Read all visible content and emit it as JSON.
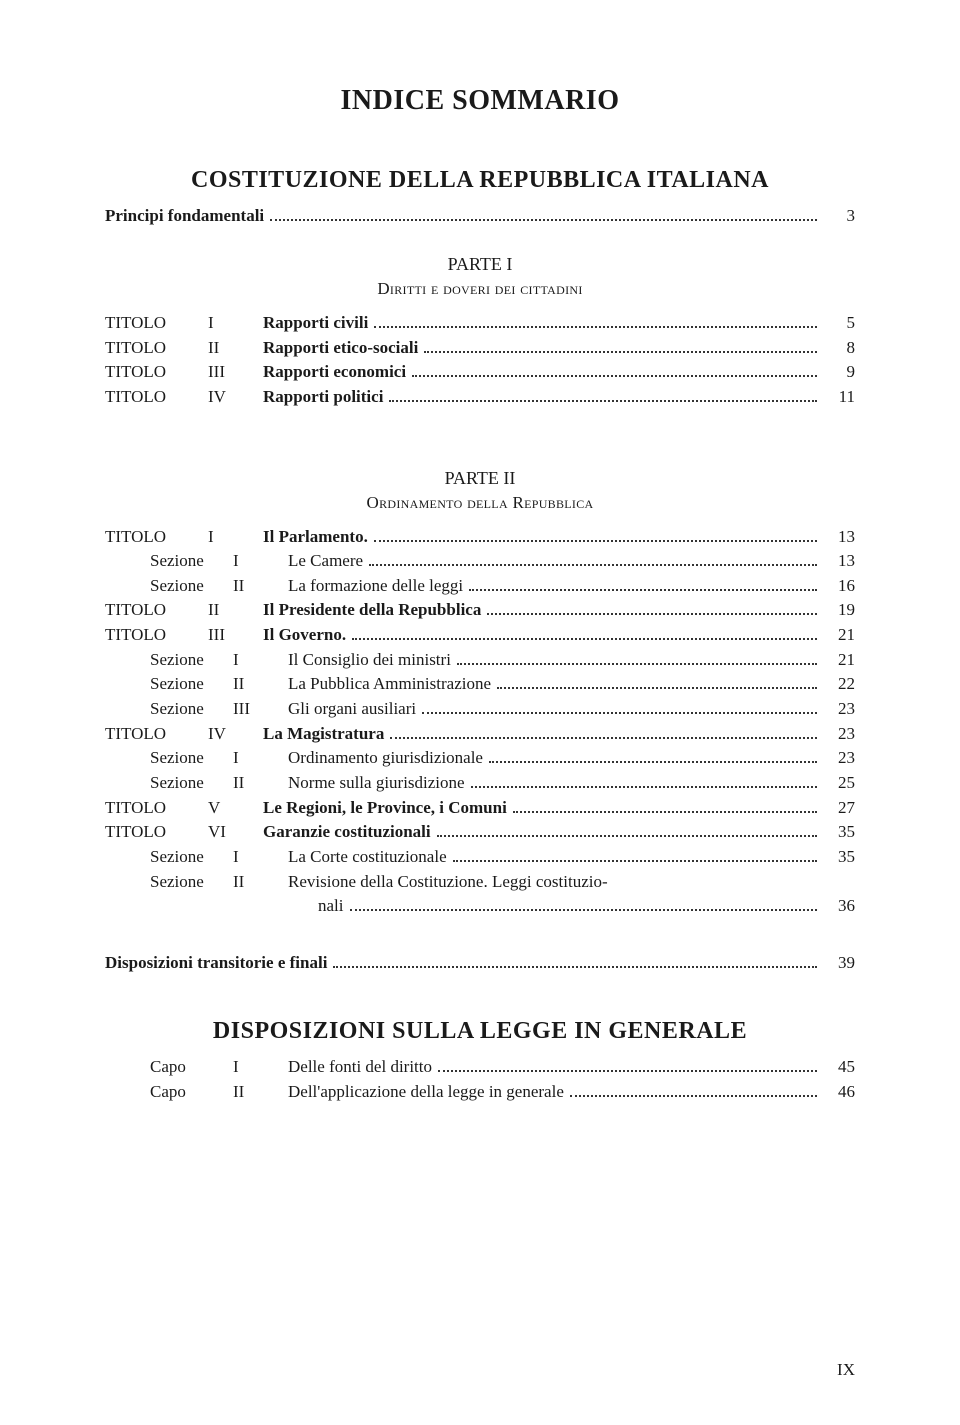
{
  "main_title": "INDICE SOMMARIO",
  "heading1": "COSTITUZIONE DELLA REPUBBLICA ITALIANA",
  "principi_line": {
    "label": "Principi fondamentali",
    "page": "3"
  },
  "parte1": {
    "label": "PARTE I",
    "subtitle": "Diritti e doveri dei cittadini",
    "rows": [
      {
        "a": "TITOLO",
        "b": "I",
        "t": "Rapporti civili",
        "bold": true,
        "p": "5"
      },
      {
        "a": "TITOLO",
        "b": "II",
        "t": "Rapporti etico-sociali",
        "bold": true,
        "p": "8"
      },
      {
        "a": "TITOLO",
        "b": "III",
        "t": "Rapporti economici",
        "bold": true,
        "p": "9"
      },
      {
        "a": "TITOLO",
        "b": "IV",
        "t": "Rapporti politici",
        "bold": true,
        "p": "11"
      }
    ]
  },
  "parte2": {
    "label": "PARTE II",
    "subtitle": "Ordinamento della Repubblica",
    "rows": [
      {
        "a": "TITOLO",
        "b": "I",
        "t": "Il Parlamento.",
        "bold": true,
        "p": "13",
        "indent": false
      },
      {
        "a": "Sezione",
        "b": "I",
        "t": "Le Camere",
        "bold": false,
        "p": "13",
        "indent": true
      },
      {
        "a": "Sezione",
        "b": "II",
        "t": "La formazione delle leggi",
        "bold": false,
        "p": "16",
        "indent": true
      },
      {
        "a": "TITOLO",
        "b": "II",
        "t": "Il Presidente della Repubblica",
        "bold": true,
        "p": "19",
        "indent": false
      },
      {
        "a": "TITOLO",
        "b": "III",
        "t": "Il Governo.",
        "bold": true,
        "p": "21",
        "indent": false
      },
      {
        "a": "Sezione",
        "b": "I",
        "t": "Il Consiglio dei ministri",
        "bold": false,
        "p": "21",
        "indent": true
      },
      {
        "a": "Sezione",
        "b": "II",
        "t": "La Pubblica Amministrazione",
        "bold": false,
        "p": "22",
        "indent": true
      },
      {
        "a": "Sezione",
        "b": "III",
        "t": "Gli organi ausiliari",
        "bold": false,
        "p": "23",
        "indent": true
      },
      {
        "a": "TITOLO",
        "b": "IV",
        "t": "La Magistratura",
        "bold": true,
        "p": "23",
        "indent": false
      },
      {
        "a": "Sezione",
        "b": "I",
        "t": "Ordinamento giurisdizionale",
        "bold": false,
        "p": "23",
        "indent": true
      },
      {
        "a": "Sezione",
        "b": "II",
        "t": "Norme sulla giurisdizione",
        "bold": false,
        "p": "25",
        "indent": true
      },
      {
        "a": "TITOLO",
        "b": "V",
        "t": "Le Regioni, le Province, i Comuni",
        "bold": true,
        "p": "27",
        "indent": false
      },
      {
        "a": "TITOLO",
        "b": "VI",
        "t": "Garanzie costituzionali",
        "bold": true,
        "p": "35",
        "indent": false
      },
      {
        "a": "Sezione",
        "b": "I",
        "t": "La Corte costituzionale",
        "bold": false,
        "p": "35",
        "indent": true
      },
      {
        "a": "Sezione",
        "b": "II",
        "t": "Revisione della Costituzione. Leggi costituzio-",
        "bold": false,
        "p": "",
        "indent": true,
        "nowrap": true
      },
      {
        "a": "",
        "b": "",
        "t": "nali",
        "bold": false,
        "p": "36",
        "indent": true,
        "cont": true
      }
    ]
  },
  "disposizioni": {
    "label": "Disposizioni transitorie e finali",
    "page": "39"
  },
  "heading2": "DISPOSIZIONI SULLA LEGGE IN GENERALE",
  "capo_rows": [
    {
      "a": "Capo",
      "b": "I",
      "t": "Delle fonti del diritto",
      "p": "45"
    },
    {
      "a": "Capo",
      "b": "II",
      "t": "Dell'applicazione della legge in generale",
      "p": "46"
    }
  ],
  "footer_page": "IX"
}
